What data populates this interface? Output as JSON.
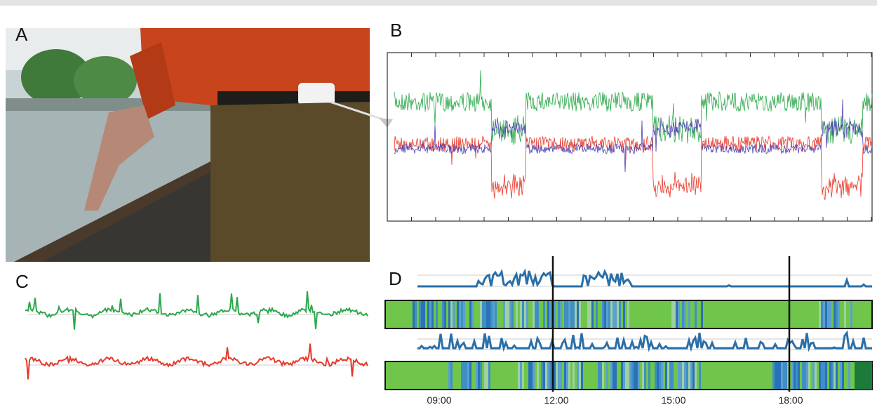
{
  "panels": {
    "a": "A",
    "b": "B",
    "c": "C",
    "d": "D"
  },
  "time_axis": {
    "labels": [
      "09:00",
      "12:00",
      "15:00",
      "18:00"
    ]
  }
}
